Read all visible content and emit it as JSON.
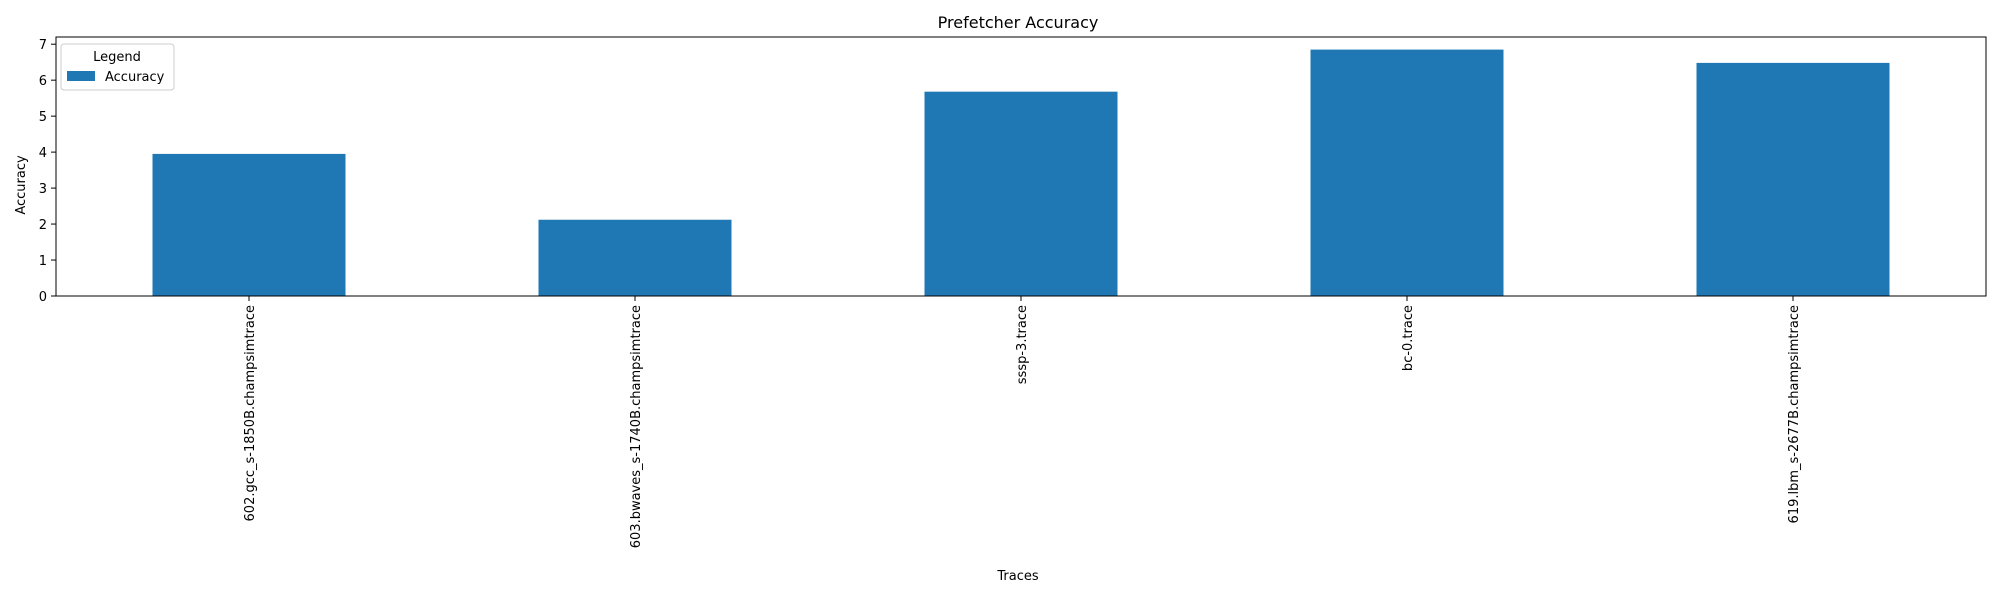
{
  "chart_data": {
    "type": "bar",
    "title": "Prefetcher Accuracy",
    "xlabel": "Traces",
    "ylabel": "Accuracy",
    "categories": [
      "602.gcc_s-1850B.champsimtrace",
      "603.bwaves_s-1740B.champsimtrace",
      "sssp-3.trace",
      "bc-0.trace",
      "619.lbm_s-2677B.champsimtrace"
    ],
    "series": [
      {
        "name": "Accuracy",
        "values": [
          3.95,
          2.12,
          5.68,
          6.85,
          6.48
        ],
        "color": "#1f77b4"
      }
    ],
    "ylim": [
      0,
      7.2
    ],
    "yticks": [
      0,
      1,
      2,
      3,
      4,
      5,
      6,
      7
    ],
    "grid": false,
    "legend": {
      "title": "Legend",
      "placement": "top-left"
    }
  }
}
